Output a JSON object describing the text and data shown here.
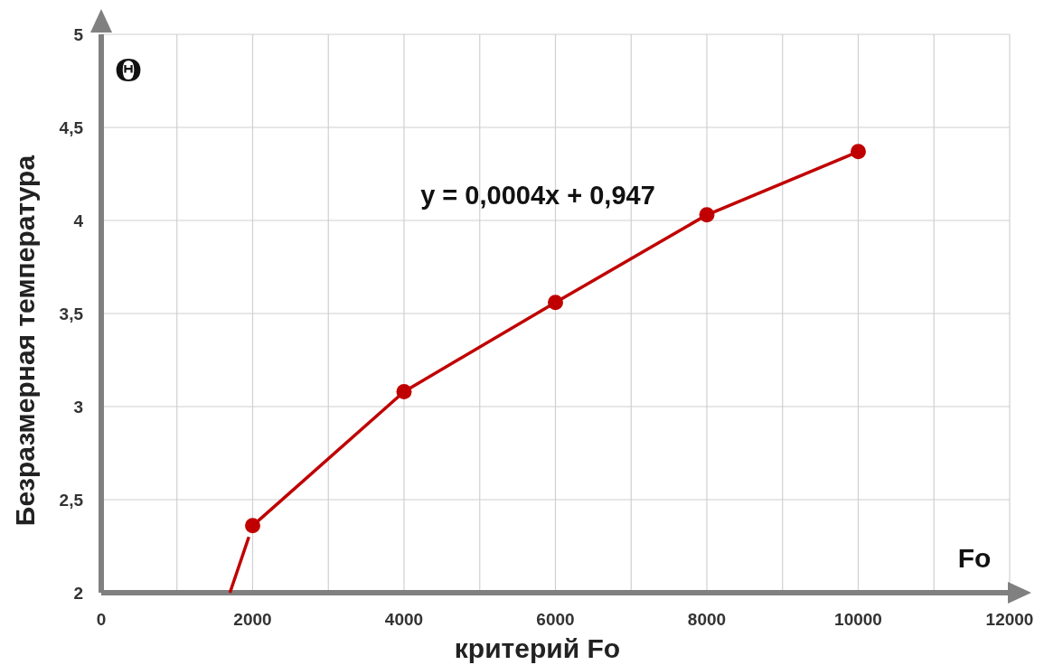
{
  "chart_data": {
    "type": "line",
    "xlabel": "критерий Fo",
    "ylabel": "Безразмерная температура",
    "annotations": [
      "y = 0,0004x + 0,947",
      "Θ",
      "Fo"
    ],
    "xlim": [
      0,
      12000
    ],
    "xticks": [
      0,
      {
        "value": 1000,
        "label": null
      },
      2000,
      {
        "value": 3000,
        "label": null
      },
      4000,
      {
        "value": 5000,
        "label": null
      },
      6000,
      {
        "value": 7000,
        "label": null
      },
      8000,
      {
        "value": 9000,
        "label": null
      },
      10000,
      {
        "value": 11000,
        "label": null
      },
      12000
    ],
    "ylim": [
      2,
      5
    ],
    "yticks": [
      2,
      {
        "value": 2.5,
        "label": "2,5"
      },
      3,
      {
        "value": 3.5,
        "label": "3,5"
      },
      4,
      {
        "value": 4.5,
        "label": "4,5"
      },
      5
    ],
    "grid": true,
    "marker": "circle",
    "line_style": "solid",
    "series": [
      {
        "color": "#c00000",
        "x": [
          1700,
          1950
        ],
        "values": [
          2,
          2.3
        ],
        "marker": "none"
      },
      {
        "color": "#c00000",
        "x": [
          2000,
          4000,
          6000,
          8000,
          10000
        ],
        "values": [
          2.36,
          3.08,
          3.56,
          4.03,
          4.37
        ]
      }
    ]
  }
}
